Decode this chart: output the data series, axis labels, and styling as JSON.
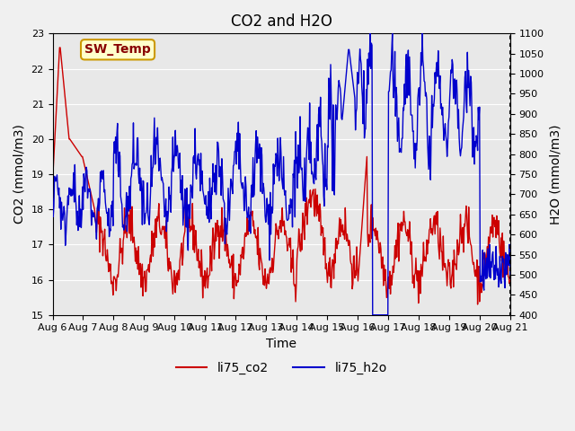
{
  "title": "CO2 and H2O",
  "xlabel": "Time",
  "ylabel_left": "CO2 (mmol/m3)",
  "ylabel_right": "H2O (mmol/m3)",
  "ylim_left": [
    15.0,
    23.0
  ],
  "ylim_right": [
    400,
    1100
  ],
  "yticks_left": [
    15.0,
    16.0,
    17.0,
    18.0,
    19.0,
    20.0,
    21.0,
    22.0,
    23.0
  ],
  "yticks_right": [
    400,
    450,
    500,
    550,
    600,
    650,
    700,
    750,
    800,
    850,
    900,
    950,
    1000,
    1050,
    1100
  ],
  "xtick_labels": [
    "Aug 6",
    "Aug 7",
    "Aug 8",
    "Aug 9",
    "Aug 10",
    "Aug 11",
    "Aug 12",
    "Aug 13",
    "Aug 14",
    "Aug 15",
    "Aug 16",
    "Aug 17",
    "Aug 18",
    "Aug 19",
    "Aug 20",
    "Aug 21"
  ],
  "color_co2": "#cc0000",
  "color_h2o": "#0000cc",
  "legend_labels": [
    "li75_co2",
    "li75_h2o"
  ],
  "annotation_text": "SW_Temp",
  "annotation_bg": "#ffffcc",
  "annotation_border": "#cc9900",
  "annotation_text_color": "#880000",
  "bg_color": "#e8e8e8",
  "grid_color": "#ffffff",
  "title_fontsize": 12,
  "axis_fontsize": 10,
  "tick_fontsize": 8,
  "legend_fontsize": 10
}
